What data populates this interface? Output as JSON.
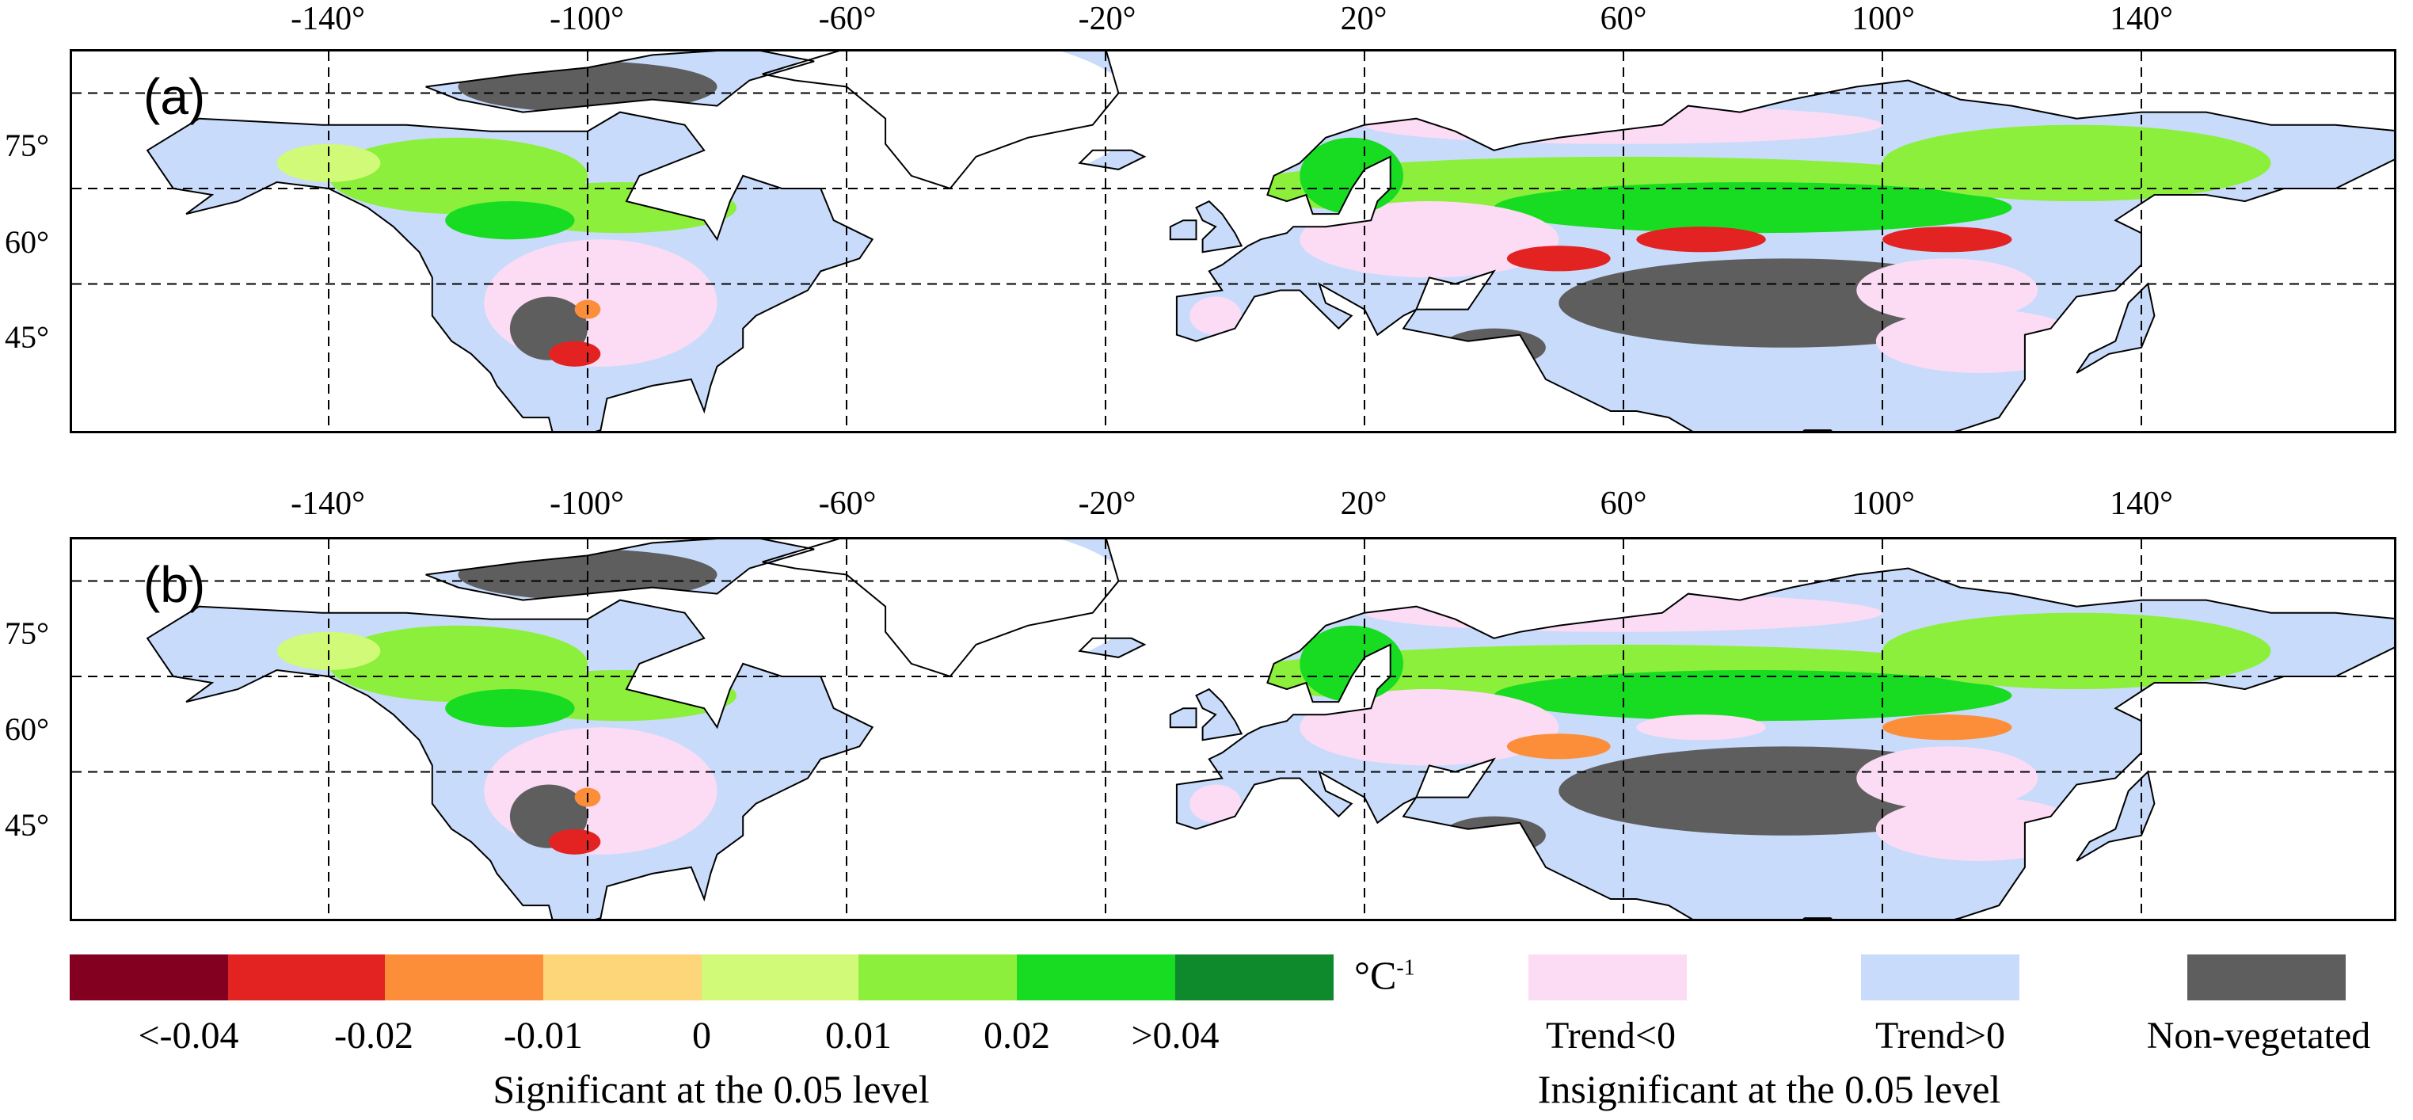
{
  "panels": [
    {
      "label": "(a)"
    },
    {
      "label": "(b)"
    }
  ],
  "longitudes": [
    {
      "label": "-140°",
      "value": -140
    },
    {
      "label": "-100°",
      "value": -100
    },
    {
      "label": "-60°",
      "value": -60
    },
    {
      "label": "-20°",
      "value": -20
    },
    {
      "label": "20°",
      "value": 20
    },
    {
      "label": "60°",
      "value": 60
    },
    {
      "label": "100°",
      "value": 100
    },
    {
      "label": "140°",
      "value": 140
    }
  ],
  "latitudes": [
    {
      "label": "75°",
      "value": 75
    },
    {
      "label": "60°",
      "value": 60
    },
    {
      "label": "45°",
      "value": 45
    }
  ],
  "legend": {
    "significant": {
      "colors": [
        "#840020",
        "#e32322",
        "#fc8e3a",
        "#fdd67a",
        "#d0fa78",
        "#8cef3c",
        "#18dc22",
        "#0e8a2c"
      ],
      "labels": [
        "<-0.04",
        "-0.02",
        "-0.01",
        "0",
        "0.01",
        "0.02",
        ">0.04"
      ],
      "unit_base": "°C",
      "unit_exp": "-1",
      "title": "Significant  at the 0.05 level"
    },
    "insignificant": {
      "items": [
        {
          "label": "Trend<0",
          "color": "#fbdcf4"
        },
        {
          "label": "Trend>0",
          "color": "#c8dbfa"
        },
        {
          "label": "Non-vegetated",
          "color": "#5e5e5e"
        }
      ],
      "title": "Insignificant at the 0.05 level"
    }
  }
}
